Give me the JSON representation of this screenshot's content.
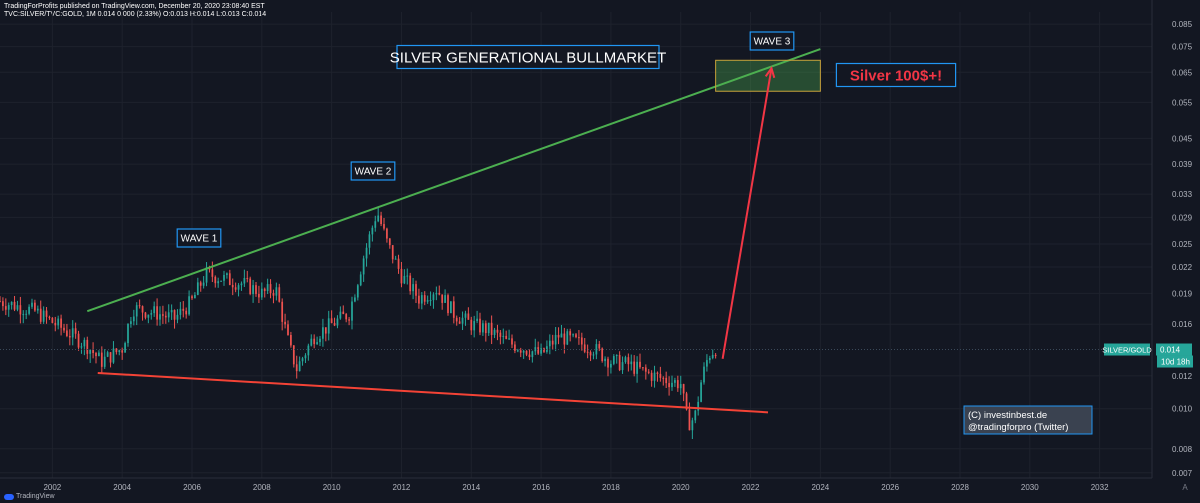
{
  "header": {
    "line1": "TradingForProfits published on TradingView.com, December 20, 2020 23:08:40 EST",
    "line2": "TVC:SILVER/TVC:GOLD, 1M 0.014 0.000 (2.33%) O:0.013 H:0.014 L:0.013 C:0.014"
  },
  "watermark": "TradingView",
  "chart_data": {
    "type": "candlestick",
    "symbol": "SILVER/GOLD",
    "interval": "1M",
    "y_scale": "log",
    "ylim": [
      0.0068,
      0.086
    ],
    "xlim": [
      2000.5,
      2033.5
    ],
    "y_ticks": [
      "0.085",
      "0.075",
      "0.065",
      "0.055",
      "0.045",
      "0.039",
      "0.033",
      "0.029",
      "0.025",
      "0.022",
      "0.019",
      "0.016",
      "0.012",
      "0.010",
      "0.008",
      "0.007"
    ],
    "y_tick_values": [
      0.085,
      0.075,
      0.065,
      0.055,
      0.045,
      0.039,
      0.033,
      0.029,
      0.025,
      0.022,
      0.019,
      0.016,
      0.012,
      0.01,
      0.008,
      0.007
    ],
    "x_ticks": [
      "2002",
      "2004",
      "2006",
      "2008",
      "2010",
      "2012",
      "2014",
      "2016",
      "2018",
      "2020",
      "2022",
      "2024",
      "2026",
      "2028",
      "2030",
      "2032"
    ],
    "x_tick_values": [
      2002,
      2004,
      2006,
      2008,
      2010,
      2012,
      2014,
      2016,
      2018,
      2020,
      2022,
      2024,
      2026,
      2028,
      2030,
      2032
    ],
    "price_anchors": [
      [
        2000.5,
        0.0182
      ],
      [
        2001.5,
        0.0172
      ],
      [
        2002.2,
        0.0158
      ],
      [
        2003.0,
        0.0142
      ],
      [
        2003.4,
        0.013
      ],
      [
        2004.0,
        0.014
      ],
      [
        2004.3,
        0.0175
      ],
      [
        2005.0,
        0.017
      ],
      [
        2005.5,
        0.0165
      ],
      [
        2006.0,
        0.0182
      ],
      [
        2006.4,
        0.0212
      ],
      [
        2007.0,
        0.0205
      ],
      [
        2007.5,
        0.02
      ],
      [
        2008.0,
        0.019
      ],
      [
        2008.4,
        0.0195
      ],
      [
        2008.8,
        0.014
      ],
      [
        2009.0,
        0.0125
      ],
      [
        2009.5,
        0.015
      ],
      [
        2010.0,
        0.016
      ],
      [
        2010.5,
        0.017
      ],
      [
        2010.9,
        0.023
      ],
      [
        2011.3,
        0.03
      ],
      [
        2011.6,
        0.025
      ],
      [
        2012.0,
        0.021
      ],
      [
        2012.5,
        0.0185
      ],
      [
        2013.0,
        0.0195
      ],
      [
        2013.5,
        0.017
      ],
      [
        2014.0,
        0.016
      ],
      [
        2014.5,
        0.0155
      ],
      [
        2015.0,
        0.0145
      ],
      [
        2015.5,
        0.014
      ],
      [
        2016.0,
        0.0135
      ],
      [
        2016.5,
        0.015
      ],
      [
        2017.0,
        0.0145
      ],
      [
        2017.5,
        0.014
      ],
      [
        2018.0,
        0.013
      ],
      [
        2018.5,
        0.0128
      ],
      [
        2019.0,
        0.0122
      ],
      [
        2019.5,
        0.0118
      ],
      [
        2020.0,
        0.0115
      ],
      [
        2020.2,
        0.0092
      ],
      [
        2020.4,
        0.0095
      ],
      [
        2020.6,
        0.0118
      ],
      [
        2020.8,
        0.0135
      ],
      [
        2021.0,
        0.014
      ]
    ],
    "annotations": {
      "title": "SILVER GENERATIONAL BULLMARKET",
      "wave1": "WAVE 1",
      "wave2": "WAVE 2",
      "wave3": "WAVE 3",
      "target": "Silver 100$+!",
      "credit_line1": "(C) investinbest.de",
      "credit_line2": "@tradingforpro (Twitter)"
    },
    "trendlines": {
      "upper": {
        "from": [
          2003.0,
          0.0172
        ],
        "to": [
          2024.0,
          0.074
        ],
        "color": "#4caf50"
      },
      "lower": {
        "from": [
          2003.3,
          0.0122
        ],
        "to": [
          2022.5,
          0.0098
        ],
        "color": "#f44336"
      },
      "projection": {
        "from": [
          2021.2,
          0.0132
        ],
        "to": [
          2022.6,
          0.0665
        ],
        "color": "#f23645"
      }
    },
    "target_box": {
      "x": [
        2021.0,
        2024.0
      ],
      "y": [
        0.0585,
        0.0695
      ]
    },
    "last_price": {
      "label": "SILVER/GOLD",
      "value": "0.014",
      "y": 0.0139,
      "countdown": "10d 18h"
    },
    "colors": {
      "up": "#26a69a",
      "down": "#ef5350",
      "bg": "#131722",
      "grid": "#1e222d",
      "text": "#b2b5be",
      "label_border": "#2196f3"
    }
  }
}
